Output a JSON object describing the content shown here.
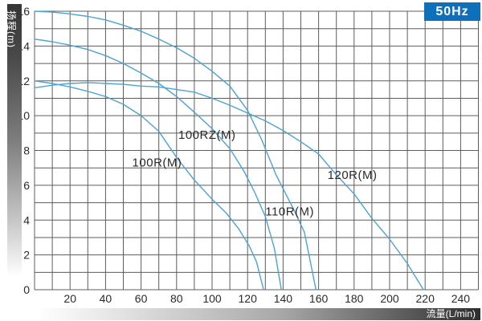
{
  "frequency_badge": "50Hz",
  "y_axis": {
    "label": "扬程(m)",
    "min": 0,
    "max": 16,
    "tick_step": 2,
    "grid_step": 1
  },
  "x_axis": {
    "label": "流量(L/min)",
    "min": 0,
    "max": 250,
    "tick_min": 20,
    "tick_max": 240,
    "tick_step": 20,
    "grid_step": 10
  },
  "colors": {
    "curve": "#4ba3d3",
    "grid": "#5c5c5c",
    "tick_text": "#2a2a2a",
    "curve_label_text": "#2a2a2a",
    "badge_bg": "#0e6fbb",
    "badge_text": "#ffffff"
  },
  "chart_data": {
    "type": "line",
    "title": "",
    "xlabel": "流量(L/min)",
    "ylabel": "扬程(m)",
    "xlim": [
      0,
      250
    ],
    "ylim": [
      0,
      16
    ],
    "grid": true,
    "legend_position": "inline-labels",
    "series": [
      {
        "name": "110R(M)",
        "label_pos": [
          130,
          4.5
        ],
        "points": [
          [
            0,
            16
          ],
          [
            10,
            15.95
          ],
          [
            20,
            15.85
          ],
          [
            30,
            15.7
          ],
          [
            40,
            15.5
          ],
          [
            50,
            15.2
          ],
          [
            60,
            14.85
          ],
          [
            70,
            14.4
          ],
          [
            80,
            13.9
          ],
          [
            90,
            13.3
          ],
          [
            100,
            12.55
          ],
          [
            110,
            11.7
          ],
          [
            120,
            10.3
          ],
          [
            128,
            8.6
          ],
          [
            136,
            6.6
          ],
          [
            146,
            4.6
          ],
          [
            152,
            3.3
          ],
          [
            158.5,
            0
          ]
        ]
      },
      {
        "name": "100RZ(M)",
        "label_pos": [
          81,
          8.9
        ],
        "points": [
          [
            0,
            14.4
          ],
          [
            10,
            14.25
          ],
          [
            20,
            14.05
          ],
          [
            30,
            13.8
          ],
          [
            40,
            13.45
          ],
          [
            50,
            13.0
          ],
          [
            60,
            12.45
          ],
          [
            70,
            11.85
          ],
          [
            80,
            11.1
          ],
          [
            90,
            10.2
          ],
          [
            100,
            9.25
          ],
          [
            110,
            8.1
          ],
          [
            118,
            6.8
          ],
          [
            124,
            5.6
          ],
          [
            130,
            4.2
          ],
          [
            135,
            2.4
          ],
          [
            139,
            0
          ]
        ]
      },
      {
        "name": "100R(M)",
        "label_pos": [
          55,
          7.3
        ],
        "points": [
          [
            0,
            12.0
          ],
          [
            10,
            11.85
          ],
          [
            20,
            11.65
          ],
          [
            30,
            11.4
          ],
          [
            40,
            11.1
          ],
          [
            50,
            10.65
          ],
          [
            60,
            10.0
          ],
          [
            70,
            9.1
          ],
          [
            80,
            7.6
          ],
          [
            90,
            6.3
          ],
          [
            100,
            5.2
          ],
          [
            108,
            4.4
          ],
          [
            115,
            3.5
          ],
          [
            121,
            2.5
          ],
          [
            125,
            1.6
          ],
          [
            129,
            0
          ]
        ]
      },
      {
        "name": "120R(M)",
        "label_pos": [
          165,
          6.6
        ],
        "points": [
          [
            0,
            11.6
          ],
          [
            10,
            11.75
          ],
          [
            20,
            11.85
          ],
          [
            30,
            11.9
          ],
          [
            40,
            11.85
          ],
          [
            50,
            11.8
          ],
          [
            60,
            11.7
          ],
          [
            70,
            11.65
          ],
          [
            80,
            11.5
          ],
          [
            90,
            11.35
          ],
          [
            100,
            11.0
          ],
          [
            110,
            10.6
          ],
          [
            120,
            10.15
          ],
          [
            130,
            9.7
          ],
          [
            140,
            9.15
          ],
          [
            150,
            8.5
          ],
          [
            160,
            7.8
          ],
          [
            170,
            6.6
          ],
          [
            180,
            5.5
          ],
          [
            190,
            4.1
          ],
          [
            200,
            2.9
          ],
          [
            210,
            1.5
          ],
          [
            219,
            0
          ]
        ]
      }
    ]
  }
}
